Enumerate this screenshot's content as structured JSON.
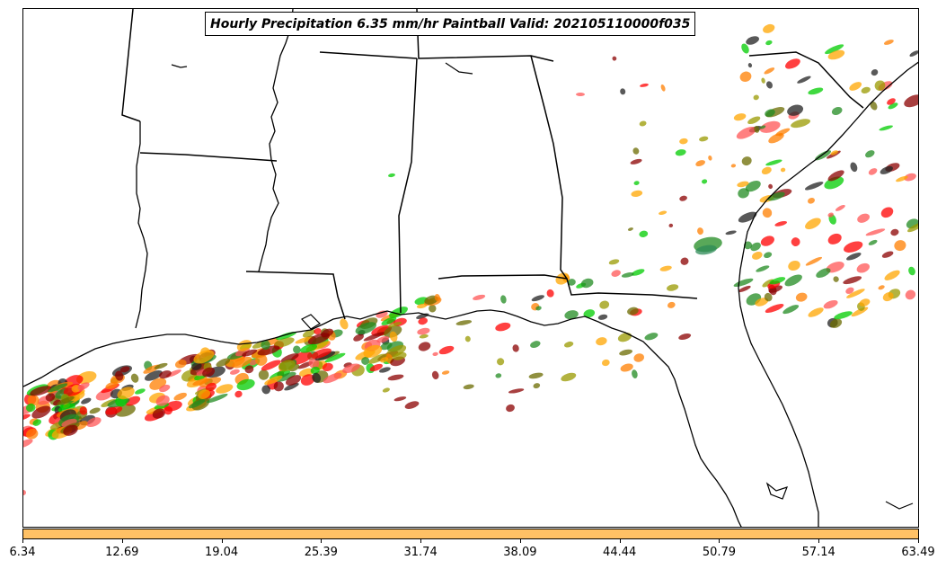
{
  "title": "Hourly Precipitation 6.35 mm/hr Paintball Valid: 202105110000f035",
  "colorbar": {
    "color": "#ffc165",
    "ticks": [
      "6.34",
      "12.69",
      "19.04",
      "25.39",
      "31.74",
      "38.09",
      "44.44",
      "50.79",
      "57.14",
      "63.49"
    ]
  },
  "paintball_colors": [
    "#ff0000",
    "#ff7f00",
    "#00cc00",
    "#8b0000",
    "#999900",
    "#228b22",
    "#222222",
    "#ffa500",
    "#6b6b00",
    "#ff5555"
  ]
}
